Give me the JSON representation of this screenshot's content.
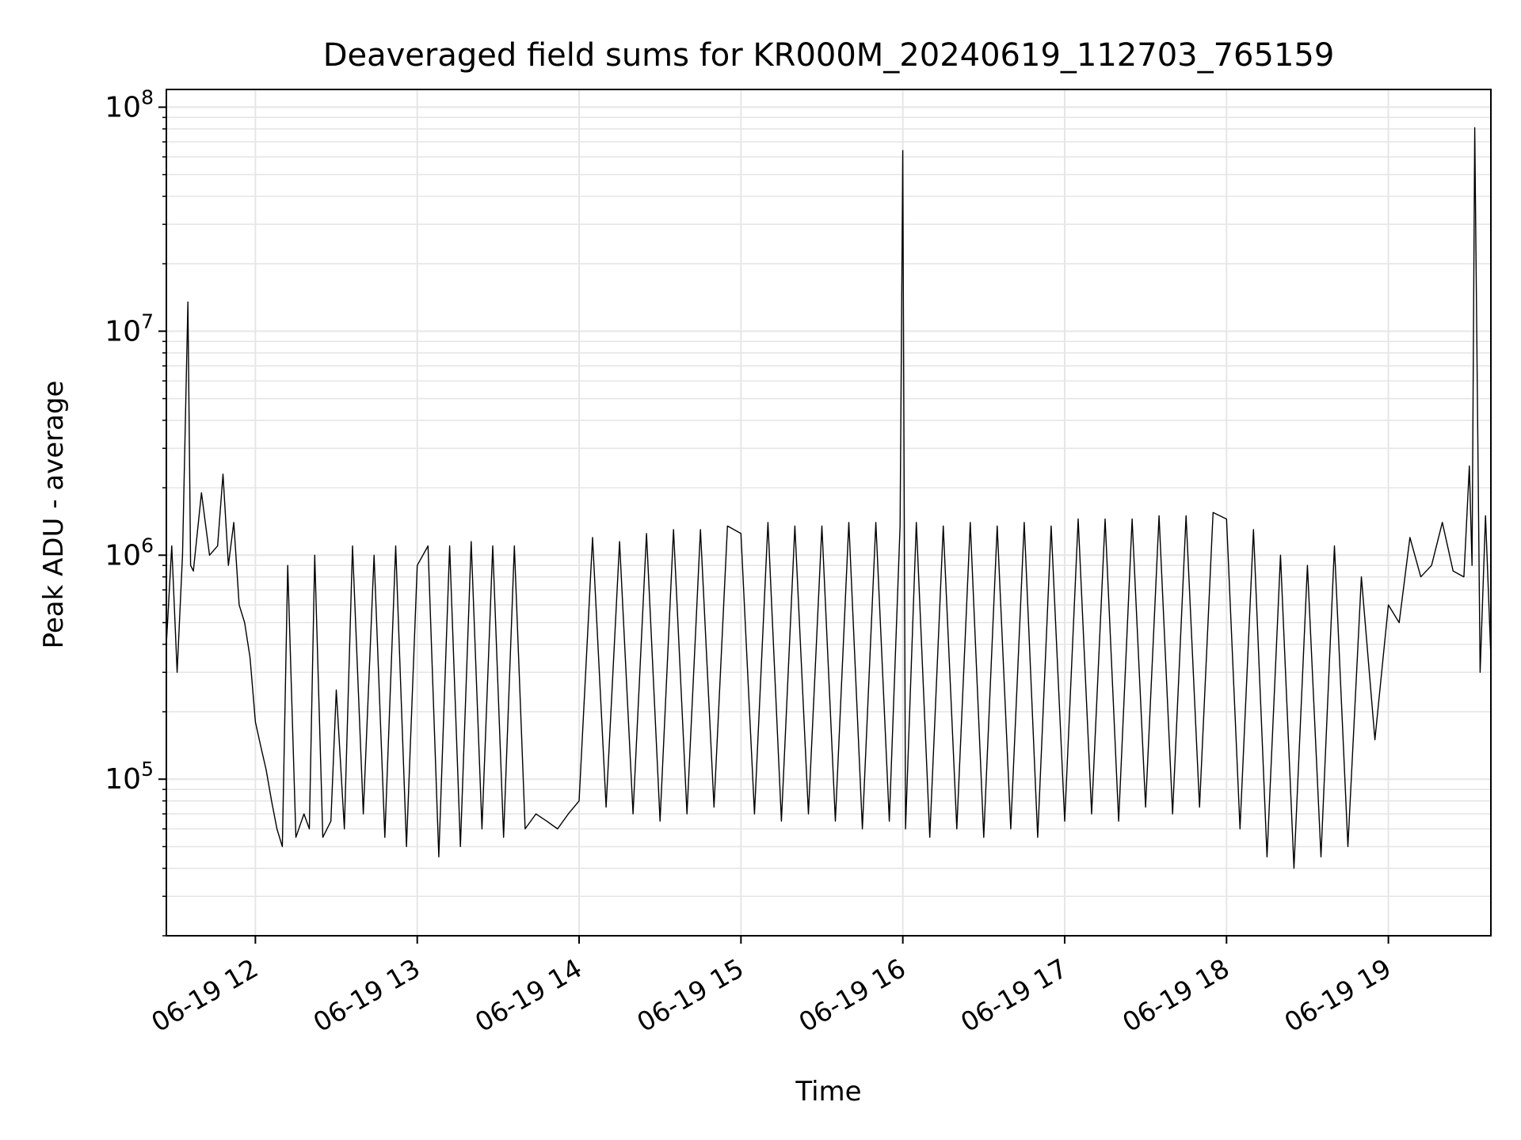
{
  "chart_data": {
    "type": "line",
    "title": "Deaveraged field sums for KR000M_20240619_112703_765159",
    "xlabel": "Time",
    "ylabel": "Peak ADU - average",
    "y_scale": "log",
    "ylim": [
      20000,
      120000000
    ],
    "xlim": [
      "2024-06-19 11:27",
      "2024-06-19 19:38"
    ],
    "grid": true,
    "line_color": "#000000",
    "x_ticks": [
      {
        "value": "2024-06-19 12:00",
        "label": "06-19 12"
      },
      {
        "value": "2024-06-19 13:00",
        "label": "06-19 13"
      },
      {
        "value": "2024-06-19 14:00",
        "label": "06-19 14"
      },
      {
        "value": "2024-06-19 15:00",
        "label": "06-19 15"
      },
      {
        "value": "2024-06-19 16:00",
        "label": "06-19 16"
      },
      {
        "value": "2024-06-19 17:00",
        "label": "06-19 17"
      },
      {
        "value": "2024-06-19 18:00",
        "label": "06-19 18"
      },
      {
        "value": "2024-06-19 19:00",
        "label": "06-19 19"
      }
    ],
    "y_ticks": [
      {
        "value": 100000,
        "base": "10",
        "exp": "5"
      },
      {
        "value": 1000000,
        "base": "10",
        "exp": "6"
      },
      {
        "value": 10000000,
        "base": "10",
        "exp": "7"
      },
      {
        "value": 100000000,
        "base": "10",
        "exp": "8"
      }
    ],
    "series": [
      {
        "x": [
          "2024-06-19 11:27",
          "2024-06-19 11:29",
          "2024-06-19 11:31",
          "2024-06-19 11:33",
          "2024-06-19 11:35",
          "2024-06-19 11:36",
          "2024-06-19 11:37",
          "2024-06-19 11:40",
          "2024-06-19 11:43",
          "2024-06-19 11:46",
          "2024-06-19 11:48",
          "2024-06-19 11:50",
          "2024-06-19 11:52",
          "2024-06-19 11:54",
          "2024-06-19 11:56",
          "2024-06-19 11:58",
          "2024-06-19 12:00",
          "2024-06-19 12:02",
          "2024-06-19 12:04",
          "2024-06-19 12:06",
          "2024-06-19 12:08",
          "2024-06-19 12:10",
          "2024-06-19 12:12",
          "2024-06-19 12:15",
          "2024-06-19 12:18",
          "2024-06-19 12:20",
          "2024-06-19 12:22",
          "2024-06-19 12:25",
          "2024-06-19 12:28",
          "2024-06-19 12:30",
          "2024-06-19 12:33",
          "2024-06-19 12:36",
          "2024-06-19 12:40",
          "2024-06-19 12:44",
          "2024-06-19 12:48",
          "2024-06-19 12:52",
          "2024-06-19 12:56",
          "2024-06-19 13:00",
          "2024-06-19 13:04",
          "2024-06-19 13:08",
          "2024-06-19 13:12",
          "2024-06-19 13:16",
          "2024-06-19 13:20",
          "2024-06-19 13:24",
          "2024-06-19 13:28",
          "2024-06-19 13:32",
          "2024-06-19 13:36",
          "2024-06-19 13:40",
          "2024-06-19 13:44",
          "2024-06-19 13:48",
          "2024-06-19 13:52",
          "2024-06-19 13:56",
          "2024-06-19 14:00",
          "2024-06-19 14:05",
          "2024-06-19 14:10",
          "2024-06-19 14:15",
          "2024-06-19 14:20",
          "2024-06-19 14:25",
          "2024-06-19 14:30",
          "2024-06-19 14:35",
          "2024-06-19 14:40",
          "2024-06-19 14:45",
          "2024-06-19 14:50",
          "2024-06-19 14:55",
          "2024-06-19 15:00",
          "2024-06-19 15:05",
          "2024-06-19 15:10",
          "2024-06-19 15:15",
          "2024-06-19 15:20",
          "2024-06-19 15:25",
          "2024-06-19 15:30",
          "2024-06-19 15:35",
          "2024-06-19 15:40",
          "2024-06-19 15:45",
          "2024-06-19 15:50",
          "2024-06-19 15:55",
          "2024-06-19 15:59",
          "2024-06-19 16:00",
          "2024-06-19 16:01",
          "2024-06-19 16:05",
          "2024-06-19 16:10",
          "2024-06-19 16:15",
          "2024-06-19 16:20",
          "2024-06-19 16:25",
          "2024-06-19 16:30",
          "2024-06-19 16:35",
          "2024-06-19 16:40",
          "2024-06-19 16:45",
          "2024-06-19 16:50",
          "2024-06-19 16:55",
          "2024-06-19 17:00",
          "2024-06-19 17:05",
          "2024-06-19 17:10",
          "2024-06-19 17:15",
          "2024-06-19 17:20",
          "2024-06-19 17:25",
          "2024-06-19 17:30",
          "2024-06-19 17:35",
          "2024-06-19 17:40",
          "2024-06-19 17:45",
          "2024-06-19 17:50",
          "2024-06-19 17:55",
          "2024-06-19 18:00",
          "2024-06-19 18:05",
          "2024-06-19 18:10",
          "2024-06-19 18:15",
          "2024-06-19 18:20",
          "2024-06-19 18:25",
          "2024-06-19 18:30",
          "2024-06-19 18:35",
          "2024-06-19 18:40",
          "2024-06-19 18:45",
          "2024-06-19 18:50",
          "2024-06-19 18:55",
          "2024-06-19 19:00",
          "2024-06-19 19:04",
          "2024-06-19 19:08",
          "2024-06-19 19:12",
          "2024-06-19 19:16",
          "2024-06-19 19:20",
          "2024-06-19 19:24",
          "2024-06-19 19:28",
          "2024-06-19 19:30",
          "2024-06-19 19:31",
          "2024-06-19 19:32",
          "2024-06-19 19:34",
          "2024-06-19 19:36",
          "2024-06-19 19:38"
        ],
        "y": [
          400000,
          1100000,
          300000,
          1000000,
          13500000,
          900000,
          850000,
          1900000,
          1000000,
          1100000,
          2300000,
          900000,
          1400000,
          600000,
          500000,
          350000,
          180000,
          140000,
          110000,
          80000,
          60000,
          50000,
          900000,
          55000,
          70000,
          60000,
          1000000,
          55000,
          65000,
          250000,
          60000,
          1100000,
          70000,
          1000000,
          55000,
          1100000,
          50000,
          900000,
          1100000,
          45000,
          1100000,
          50000,
          1150000,
          60000,
          1100000,
          55000,
          1100000,
          60000,
          70000,
          65000,
          60000,
          70000,
          80000,
          1200000,
          75000,
          1150000,
          70000,
          1250000,
          65000,
          1300000,
          70000,
          1300000,
          75000,
          1350000,
          1250000,
          70000,
          1400000,
          65000,
          1350000,
          70000,
          1350000,
          65000,
          1400000,
          60000,
          1400000,
          65000,
          1350000,
          64000000,
          60000,
          1400000,
          55000,
          1350000,
          60000,
          1400000,
          55000,
          1350000,
          60000,
          1400000,
          55000,
          1350000,
          65000,
          1450000,
          70000,
          1450000,
          65000,
          1450000,
          75000,
          1500000,
          70000,
          1500000,
          75000,
          1550000,
          1450000,
          60000,
          1300000,
          45000,
          1000000,
          40000,
          900000,
          45000,
          1100000,
          50000,
          800000,
          150000,
          600000,
          500000,
          1200000,
          800000,
          900000,
          1400000,
          850000,
          800000,
          2500000,
          900000,
          81000000,
          300000,
          1500000,
          350000
        ]
      }
    ]
  }
}
